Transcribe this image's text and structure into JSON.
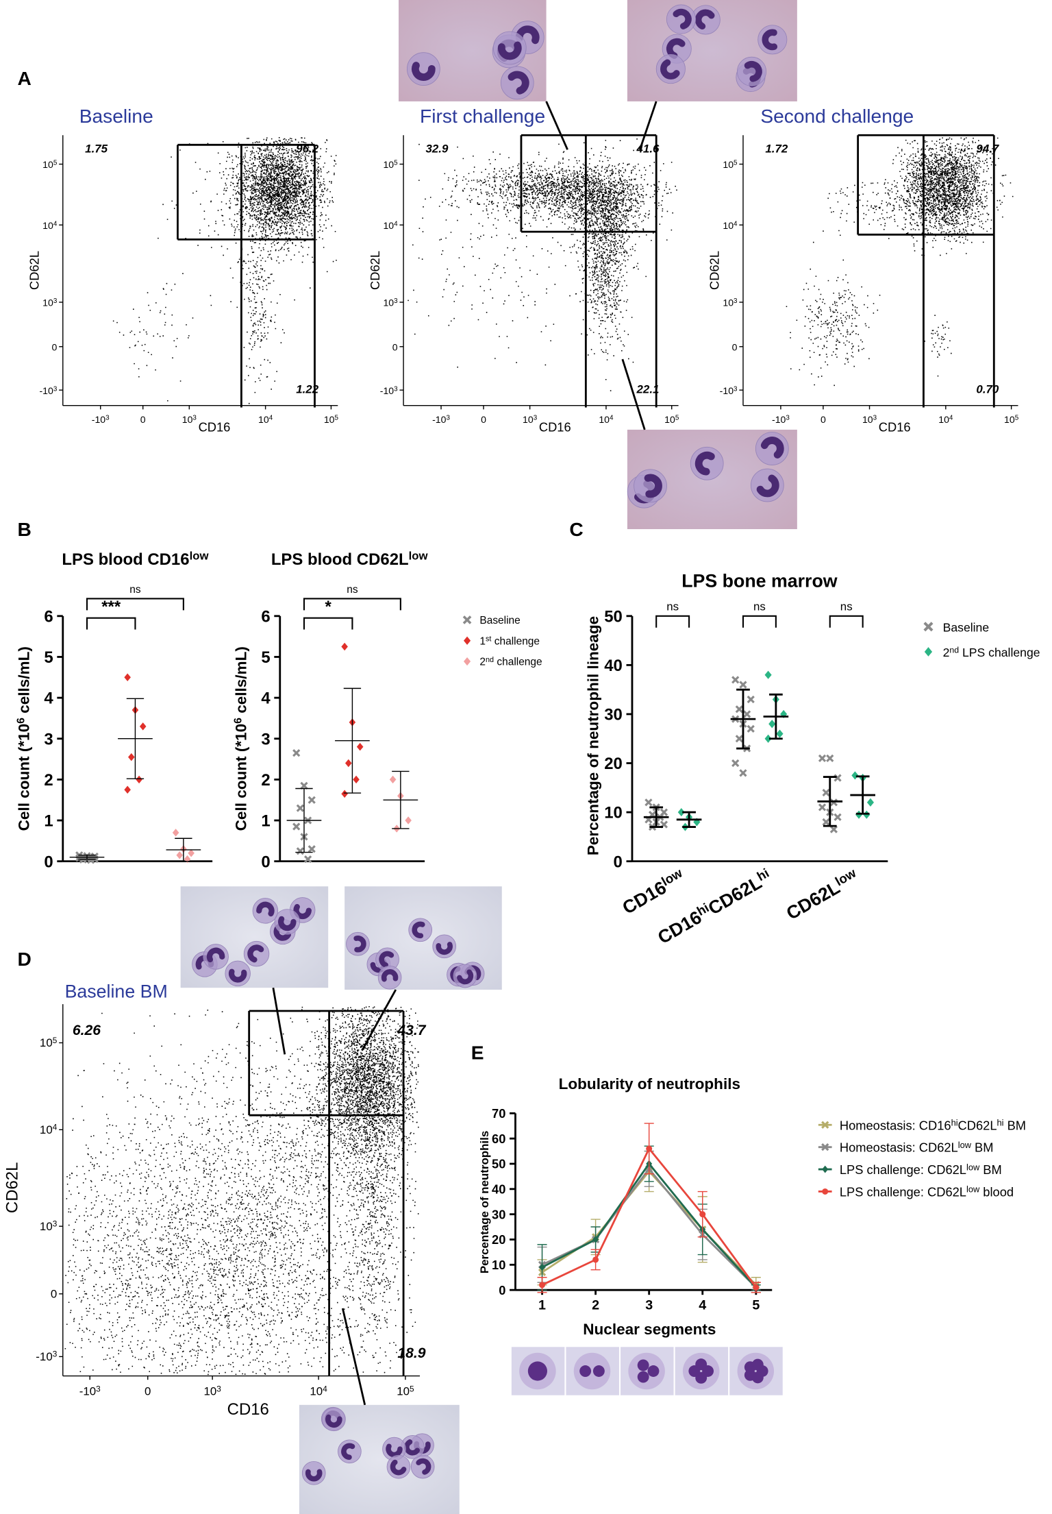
{
  "figure": {
    "panel_labels": [
      "A",
      "B",
      "C",
      "D",
      "E"
    ],
    "flow_ticks": {
      "x": [
        [
          "-10",
          "3"
        ],
        [
          "0"
        ],
        [
          "10",
          "3"
        ],
        [
          "10",
          "4"
        ],
        [
          "10",
          "5"
        ]
      ],
      "y": [
        [
          "10",
          "5"
        ],
        [
          "10",
          "4"
        ],
        [
          "10",
          "3"
        ],
        [
          "0"
        ],
        [
          "-10",
          "3"
        ]
      ]
    },
    "flow_plots": [
      {
        "title": "Baseline",
        "x_label": "CD16",
        "y_label": "CD62L",
        "gates": [
          "1.75",
          "96.2",
          "1.22"
        ]
      },
      {
        "title": "First challenge",
        "x_label": "CD16",
        "y_label": "CD62L",
        "gates": [
          "32.9",
          "41.6",
          "22.1"
        ]
      },
      {
        "title": "Second challenge",
        "x_label": "CD16",
        "y_label": "CD62L",
        "gates": [
          "1.72",
          "94.7",
          "0.70"
        ]
      },
      {
        "title": "Baseline BM",
        "x_label": "CD16",
        "y_label": "CD62L",
        "gates": [
          "6.26",
          "43.7",
          "18.9"
        ]
      }
    ]
  },
  "chart_data": [
    {
      "type": "dot_plot",
      "title": [
        "LPS blood CD16",
        "low"
      ],
      "y_label": [
        "Cell count (*10",
        "6",
        " cells/mL)"
      ],
      "ylim": [
        0,
        6
      ],
      "yticks": [
        0,
        1,
        2,
        3,
        4,
        5,
        6
      ],
      "legend": false,
      "series": [
        {
          "color": "#8a8a8a",
          "marker": "x",
          "points": [
            0.15,
            0.13,
            0.12,
            0.1,
            0.1,
            0.08,
            0.07,
            0.05,
            0.04,
            0.03
          ],
          "mean": 0.1,
          "sd": 0.05
        },
        {
          "color": "#e0302a",
          "marker": "diamond",
          "points": [
            4.5,
            3.7,
            3.3,
            2.55,
            2.0,
            1.75
          ],
          "mean": 3.0,
          "sd": 0.98
        },
        {
          "color": "#f2a0a0",
          "marker": "diamond",
          "points": [
            0.7,
            0.3,
            0.2,
            0.15,
            0.05
          ],
          "mean": 0.28,
          "sd": 0.28
        }
      ],
      "significance": [
        {
          "groups": [
            0,
            1
          ],
          "label": "***"
        },
        {
          "groups": [
            0,
            2
          ],
          "label": "ns"
        }
      ]
    },
    {
      "type": "dot_plot",
      "title": [
        "LPS blood CD62L",
        "low"
      ],
      "y_label": [
        "Cell count (*10",
        "6",
        " cells/mL)"
      ],
      "ylim": [
        0,
        6
      ],
      "yticks": [
        0,
        1,
        2,
        3,
        4,
        5,
        6
      ],
      "legend": true,
      "series": [
        {
          "name": [
            "Baseline"
          ],
          "color": "#8a8a8a",
          "marker": "x",
          "points": [
            2.65,
            1.85,
            1.5,
            1.3,
            1.0,
            0.85,
            0.6,
            0.3,
            0.25,
            0.05
          ],
          "mean": 1.0,
          "sd": 0.78
        },
        {
          "name": [
            "1",
            "st",
            " challenge"
          ],
          "color": "#e0302a",
          "marker": "diamond",
          "points": [
            5.25,
            3.4,
            2.8,
            2.4,
            2.0,
            1.65
          ],
          "mean": 2.95,
          "sd": 1.28
        },
        {
          "name": [
            "2",
            "nd",
            " challenge"
          ],
          "color": "#f2a0a0",
          "marker": "diamond",
          "points": [
            2.0,
            1.6,
            1.0,
            0.8
          ],
          "mean": 1.5,
          "sd": 0.7
        }
      ],
      "significance": [
        {
          "groups": [
            0,
            1
          ],
          "label": "*"
        },
        {
          "groups": [
            0,
            2
          ],
          "label": "ns"
        }
      ]
    },
    {
      "type": "grouped_dot_plot",
      "title": "LPS bone marrow",
      "y_label": "Percentage of neutrophil lineage",
      "categories": [
        [
          "CD16",
          "low"
        ],
        [
          "CD16",
          "hi",
          "CD62L",
          "hi"
        ],
        [
          "CD62L",
          "low"
        ]
      ],
      "ylim": [
        0,
        50
      ],
      "yticks": [
        0,
        10,
        20,
        30,
        40,
        50
      ],
      "legend": true,
      "series": [
        {
          "name": [
            "Baseline"
          ],
          "color": "#8a8a8a",
          "marker": "x",
          "points": [
            [
              12,
              11,
              10,
              9.5,
              9,
              8.5,
              8,
              7.5,
              7
            ],
            [
              37,
              36,
              33,
              31,
              30,
              29,
              28,
              27,
              25,
              23,
              20,
              18
            ],
            [
              21,
              21,
              17,
              14,
              12,
              11,
              10,
              9,
              8,
              6.5
            ]
          ],
          "mean": [
            9,
            29,
            12.2
          ],
          "sd": [
            2,
            6,
            5
          ]
        },
        {
          "name": [
            "2",
            "nd",
            " LPS challenge"
          ],
          "color": "#2bb585",
          "marker": "diamond",
          "points": [
            [
              10,
              9,
              8,
              7
            ],
            [
              38,
              33,
              30,
              28,
              26,
              25
            ],
            [
              17.5,
              17,
              12,
              9.5,
              9.5
            ]
          ],
          "mean": [
            8.5,
            29.5,
            13.5
          ],
          "sd": [
            1.5,
            4.5,
            3.8
          ]
        }
      ],
      "significance": [
        {
          "category": 0,
          "label": "ns"
        },
        {
          "category": 1,
          "label": "ns"
        },
        {
          "category": 2,
          "label": "ns"
        }
      ]
    },
    {
      "type": "line",
      "title": "Lobularity of neutrophils",
      "x_label": "Nuclear segments",
      "y_label": "Percentage of neutrophils",
      "x": [
        1,
        2,
        3,
        4,
        5
      ],
      "xlim": [
        0.5,
        5.3
      ],
      "xticks": [
        1,
        2,
        3,
        4,
        5
      ],
      "ylim": [
        0,
        70
      ],
      "yticks": [
        0,
        10,
        20,
        30,
        40,
        50,
        60,
        70
      ],
      "legend": true,
      "series": [
        {
          "name": [
            "Homeostasis: CD16",
            "hi",
            "CD62L",
            "hi",
            " BM"
          ],
          "color": "#b5ad6a",
          "marker": "x",
          "values": [
            7,
            21,
            47,
            24,
            2
          ],
          "errors": [
            5,
            7,
            8,
            13,
            3
          ]
        },
        {
          "name": [
            "Homeostasis: CD62L",
            "low",
            " BM"
          ],
          "color": "#8a8a8a",
          "marker": "x",
          "values": [
            10,
            20,
            48,
            22,
            1
          ],
          "errors": [
            7,
            5,
            7,
            10,
            2
          ]
        },
        {
          "name": [
            "LPS challenge: CD62L",
            "low",
            " BM"
          ],
          "color": "#1f6b4f",
          "marker": "diamond",
          "values": [
            9,
            20,
            50,
            24,
            1
          ],
          "errors": [
            9,
            5,
            7,
            10,
            1
          ]
        },
        {
          "name": [
            "LPS challenge: CD62L",
            "low",
            " blood"
          ],
          "color": "#e8463c",
          "marker": "circle",
          "values": [
            2,
            12,
            56,
            30,
            1
          ],
          "errors": [
            3,
            4,
            10,
            9,
            2
          ]
        }
      ]
    }
  ]
}
